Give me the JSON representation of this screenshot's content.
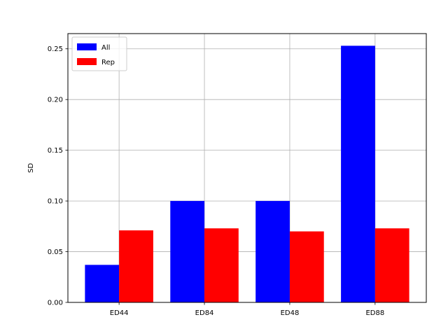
{
  "chart_data": {
    "type": "bar",
    "title": "",
    "xlabel": "",
    "ylabel": "SD",
    "categories": [
      "ED44",
      "ED84",
      "ED48",
      "ED88"
    ],
    "series": [
      {
        "name": "All",
        "color": "#0000ff",
        "values": [
          0.037,
          0.1,
          0.1,
          0.253
        ]
      },
      {
        "name": "Rep",
        "color": "#ff0000",
        "values": [
          0.071,
          0.073,
          0.07,
          0.073
        ]
      }
    ],
    "ylim": [
      0,
      0.265
    ],
    "yticks": [
      0.0,
      0.05,
      0.1,
      0.15,
      0.2,
      0.25
    ],
    "ytick_labels": [
      "0.00",
      "0.05",
      "0.10",
      "0.15",
      "0.20",
      "0.25"
    ],
    "grid": true,
    "legend_position": "top-left"
  }
}
